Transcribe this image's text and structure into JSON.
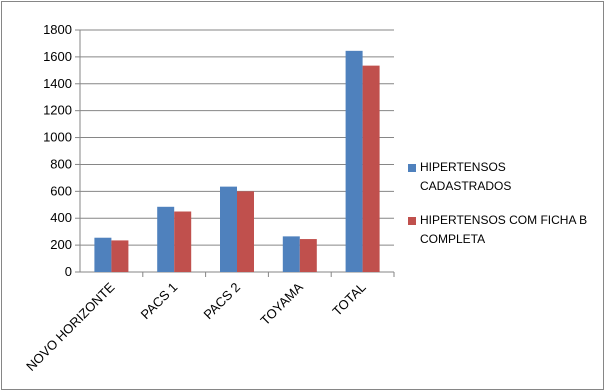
{
  "chart_data": {
    "type": "bar",
    "title": "",
    "xlabel": "",
    "ylabel": "",
    "categories": [
      "NOVO HORIZONTE",
      "PACS 1",
      "PACS 2",
      "TOYAMA",
      "TOTAL"
    ],
    "series": [
      {
        "name": "HIPERTENSOS CADASTRADOS",
        "color": "#4F81BD",
        "values": [
          255,
          485,
          635,
          265,
          1645
        ]
      },
      {
        "name": "HIPERTENSOS  COM FICHA B COMPLETA",
        "color": "#C0504D",
        "values": [
          235,
          450,
          600,
          245,
          1535
        ]
      }
    ],
    "yticks": [
      "0",
      "200",
      "400",
      "600",
      "800",
      "1000",
      "1200",
      "1400",
      "1600",
      "1800"
    ],
    "ylim": [
      0,
      1800
    ],
    "grid": true,
    "legend": "right"
  }
}
